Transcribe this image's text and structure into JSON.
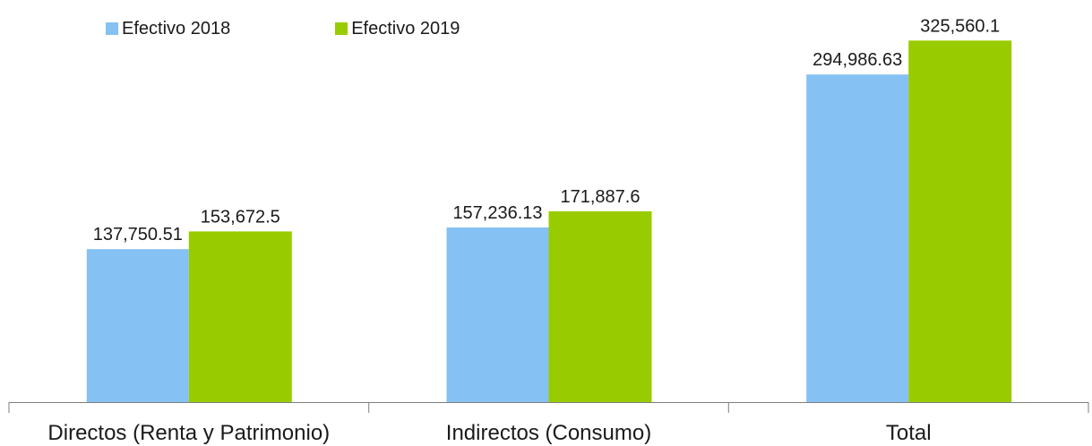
{
  "chart_data": {
    "type": "bar",
    "categories": [
      "Directos (Renta y Patrimonio)",
      "Indirectos (Consumo)",
      "Total"
    ],
    "series": [
      {
        "name": "Efectivo 2018",
        "values": [
          137750.51,
          157236.13,
          294986.63
        ],
        "labels": [
          "137,750.51",
          "157,236.13",
          "294,986.63"
        ],
        "color": "#85C1F3"
      },
      {
        "name": "Efectivo 2019",
        "values": [
          153672.5,
          171887.6,
          325560.1
        ],
        "labels": [
          "153,672.5",
          "171,887.6",
          "325,560.1"
        ],
        "color": "#99CC00"
      }
    ],
    "ylim": [
      0,
      350000
    ],
    "grid": false,
    "legend_position": "top-left"
  }
}
